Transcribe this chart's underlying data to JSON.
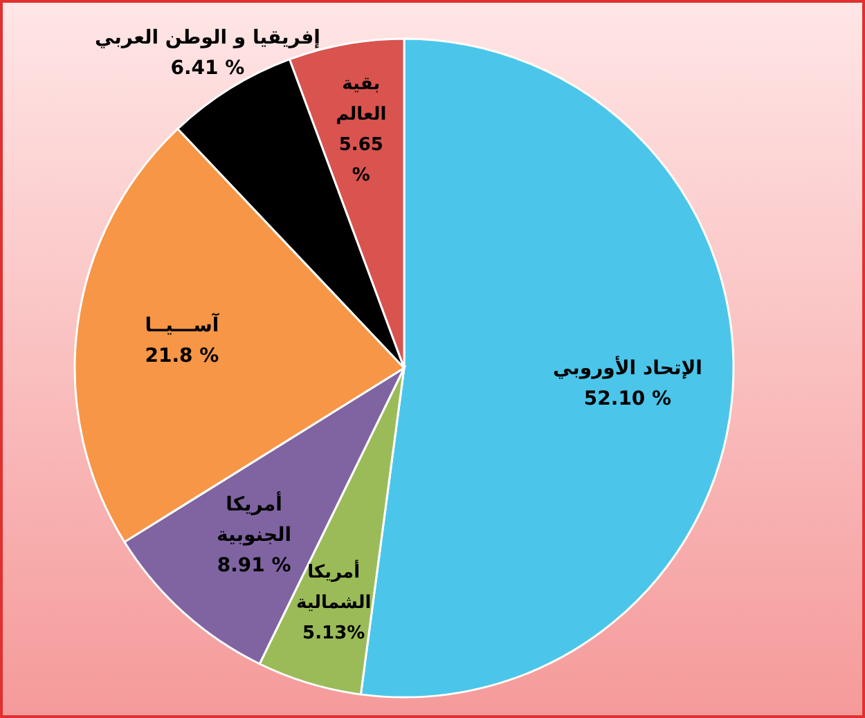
{
  "chart_data": {
    "type": "pie",
    "categories": [
      "الإتحاد الأوروبي",
      "أمريكا الشمالية",
      "أمريكا الجنوبية",
      "آســـيــا",
      "إفريقيا و الوطن العربي",
      "بقية العالم"
    ],
    "values": [
      52.1,
      5.13,
      8.91,
      21.8,
      6.41,
      5.65
    ],
    "value_labels": [
      "52.10 %",
      "5.13%",
      "8.91 %",
      "21.8 %",
      "6.41 %",
      "5.65 %"
    ],
    "colors": [
      "#4bc6ea",
      "#9bbb59",
      "#8064a2",
      "#f79646",
      "#000000",
      "#d9534f"
    ]
  }
}
